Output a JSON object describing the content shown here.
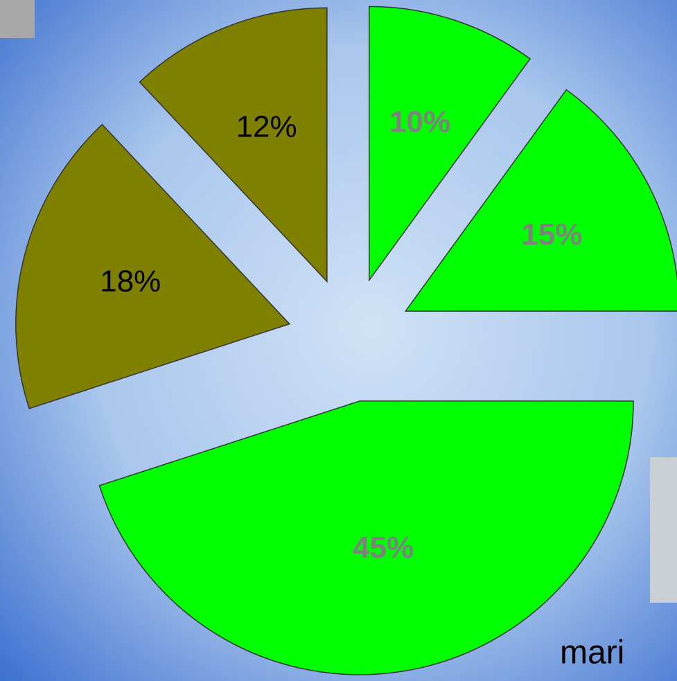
{
  "chart_data": {
    "type": "pie",
    "categories": [
      null,
      null,
      null,
      null,
      null
    ],
    "values": [
      10,
      15,
      45,
      18,
      12
    ],
    "value_labels": [
      "10%",
      "15%",
      "45%",
      "18%",
      "12%"
    ],
    "colors": [
      "#00ff00",
      "#00ff00",
      "#00ff00",
      "#808000",
      "#808000"
    ],
    "label_colors": [
      "#808080",
      "#808080",
      "#808080",
      "#000000",
      "#000000"
    ],
    "annotation": "mari"
  }
}
